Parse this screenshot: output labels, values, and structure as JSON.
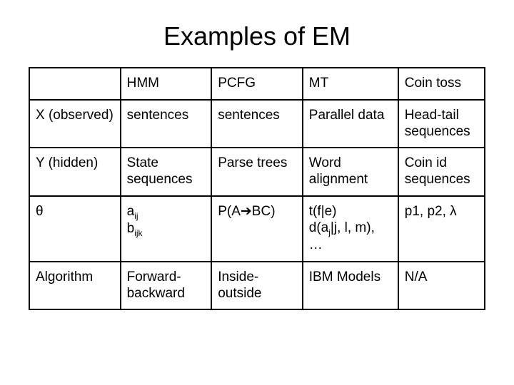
{
  "title": "Examples of EM",
  "table": {
    "background_color": "#ffffff",
    "border_color": "#000000",
    "border_width": 2,
    "font_family": "Arial",
    "title_fontsize": 36,
    "cell_fontsize": 19,
    "sub_fontsize": 12,
    "col_widths_pct": [
      20,
      20,
      20,
      21,
      19
    ],
    "columns": [
      "",
      "HMM",
      "PCFG",
      "MT",
      "Coin toss"
    ],
    "rows": [
      {
        "label": "X (observed)",
        "cells": [
          "sentences",
          "sentences",
          "Parallel data",
          "Head-tail sequences"
        ]
      },
      {
        "label": "Y (hidden)",
        "cells": [
          "State sequences",
          "Parse trees",
          "Word alignment",
          "Coin id sequences"
        ]
      },
      {
        "label": "θ",
        "cells_html": [
          {
            "type": "theta_hmm",
            "a": "a",
            "a_sub": "ij",
            "b": "b",
            "b_sub": "ijk"
          },
          {
            "type": "theta_pcfg",
            "text": "P(A",
            "arrow": "➔",
            "tail": "BC)"
          },
          {
            "type": "theta_mt",
            "line1": "t(f|e)",
            "d_prefix": "d(a",
            "d_sub": "j",
            "d_suffix": "|j, l, m), …"
          },
          {
            "type": "plain",
            "text": "p1, p2, λ"
          }
        ]
      },
      {
        "label": "Algorithm",
        "cells": [
          "Forward-backward",
          "Inside-outside",
          "IBM Models",
          "N/A"
        ]
      }
    ]
  }
}
